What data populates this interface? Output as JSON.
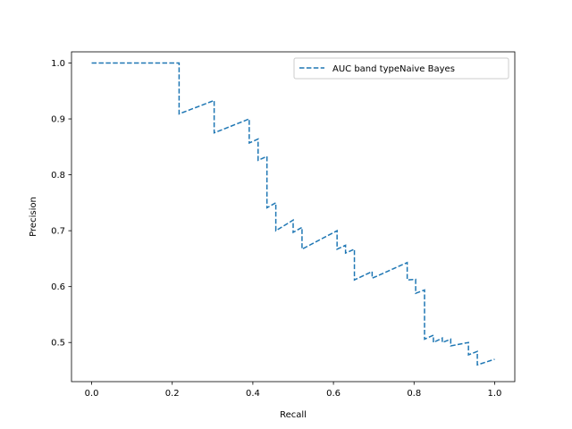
{
  "chart_data": {
    "type": "line",
    "title": "",
    "xlabel": "Recall",
    "ylabel": "Precision",
    "xlim": [
      -0.05,
      1.05
    ],
    "ylim": [
      0.43,
      1.02
    ],
    "xticks": [
      0.0,
      0.2,
      0.4,
      0.6,
      0.8,
      1.0
    ],
    "xtick_labels": [
      "0.0",
      "0.2",
      "0.4",
      "0.6",
      "0.8",
      "1.0"
    ],
    "yticks": [
      0.5,
      0.6,
      0.7,
      0.8,
      0.9,
      1.0
    ],
    "ytick_labels": [
      "0.5",
      "0.6",
      "0.7",
      "0.8",
      "0.9",
      "1.0"
    ],
    "grid": false,
    "legend_position": "upper right",
    "series": [
      {
        "name": "AUC band typeNaive Bayes",
        "color": "#1f77b4",
        "linestyle": "dashed",
        "step": true,
        "x": [
          0.0,
          0.217,
          0.217,
          0.304,
          0.304,
          0.391,
          0.391,
          0.413,
          0.413,
          0.435,
          0.435,
          0.457,
          0.457,
          0.5,
          0.5,
          0.522,
          0.522,
          0.609,
          0.609,
          0.63,
          0.63,
          0.652,
          0.652,
          0.696,
          0.696,
          0.783,
          0.783,
          0.804,
          0.804,
          0.826,
          0.826,
          0.848,
          0.848,
          0.87,
          0.87,
          0.891,
          0.891,
          0.935,
          0.935,
          0.957,
          0.957,
          1.0
        ],
        "y": [
          1.0,
          1.0,
          0.909,
          0.933,
          0.875,
          0.9,
          0.857,
          0.864,
          0.826,
          0.833,
          0.741,
          0.75,
          0.7,
          0.719,
          0.697,
          0.706,
          0.667,
          0.7,
          0.667,
          0.674,
          0.66,
          0.667,
          0.612,
          0.627,
          0.615,
          0.643,
          0.612,
          0.613,
          0.588,
          0.594,
          0.506,
          0.513,
          0.5,
          0.508,
          0.5,
          0.506,
          0.494,
          0.5,
          0.478,
          0.484,
          0.46,
          0.47
        ]
      }
    ]
  }
}
